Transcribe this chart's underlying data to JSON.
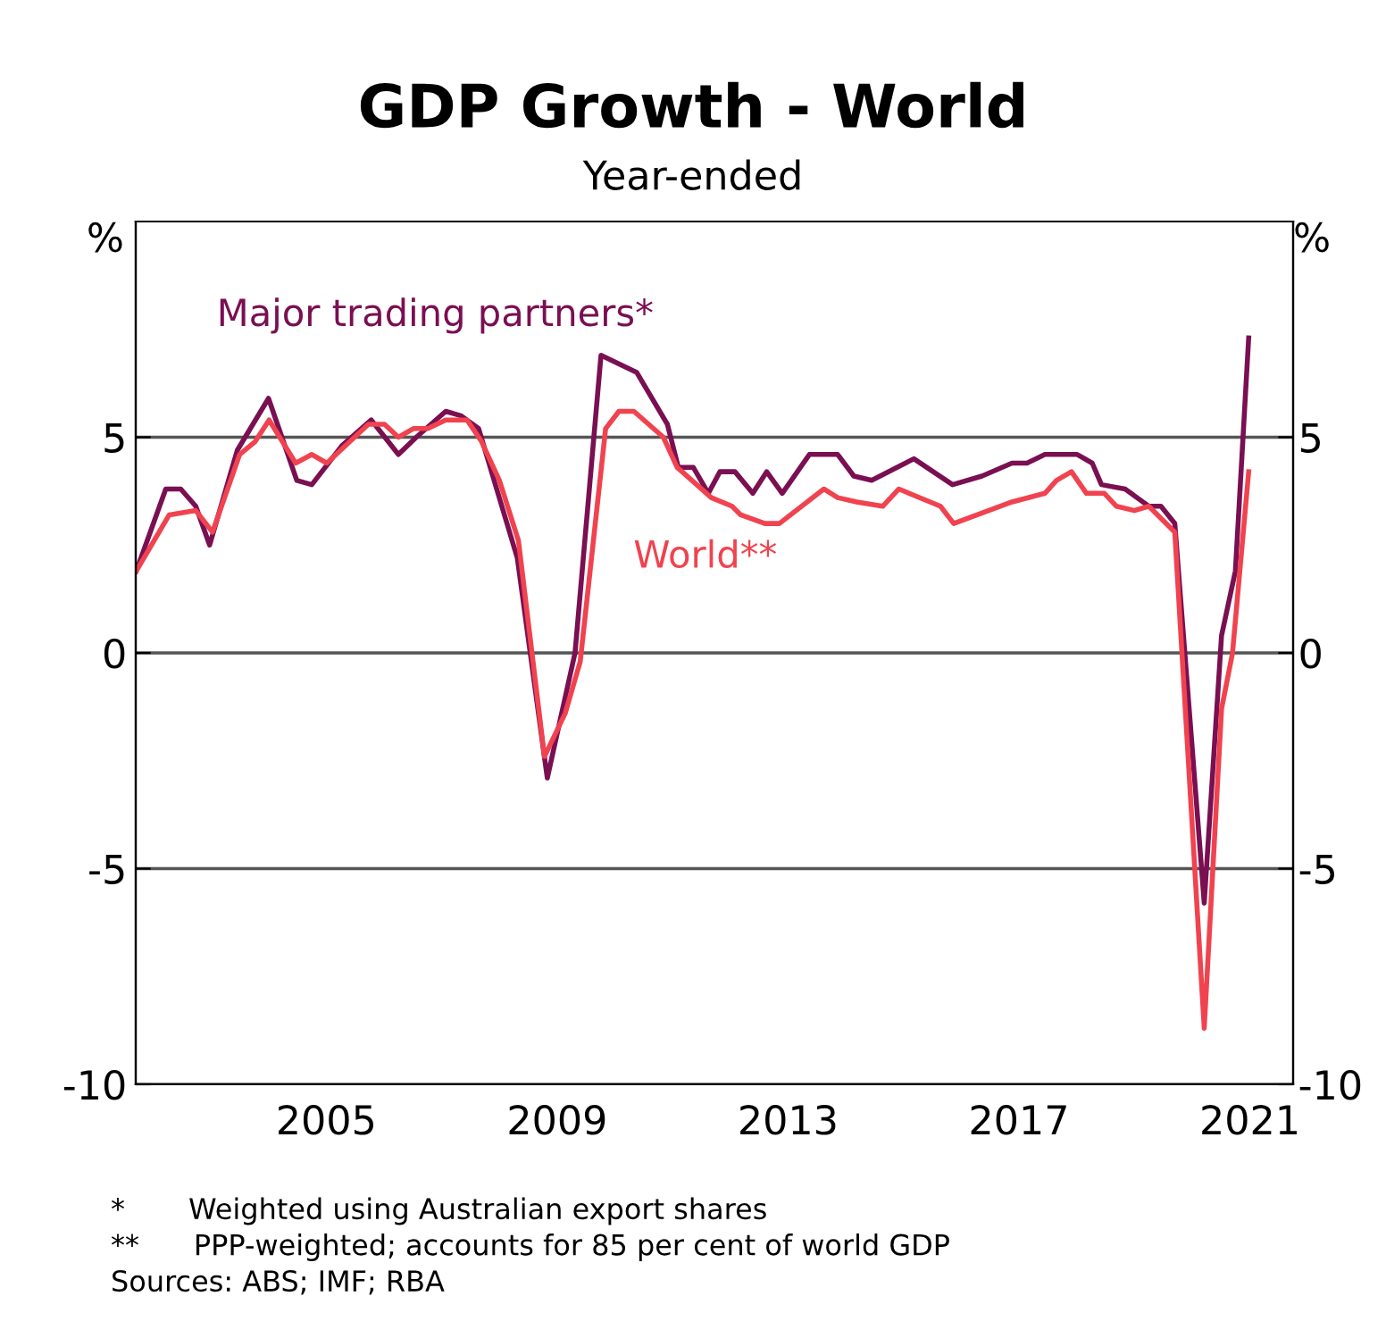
{
  "chart_data": {
    "type": "line",
    "title": "GDP Growth - World",
    "subtitle": "Year-ended",
    "ylabel": "%",
    "y2label": "%",
    "xlim": [
      2002.2,
      2022.25
    ],
    "xticks": [
      {
        "value": 2005.5,
        "label": "2005"
      },
      {
        "value": 2009.5,
        "label": "2009"
      },
      {
        "value": 2013.5,
        "label": "2013"
      },
      {
        "value": 2017.5,
        "label": "2017"
      },
      {
        "value": 2021.5,
        "label": "2021"
      }
    ],
    "ylim": [
      -10,
      10
    ],
    "yticks": [
      -10,
      -5,
      0,
      5
    ],
    "y2lim": [
      -10,
      10
    ],
    "y2ticks": [
      -10,
      -5,
      0,
      5
    ],
    "grid": "y",
    "line_style": "solid",
    "series": [
      {
        "name": "Major trading partners*",
        "color": "#7a0f52",
        "x": [
          2002.21,
          2002.72,
          2002.98,
          2003.24,
          2003.48,
          2003.96,
          2004.5,
          2004.99,
          2005.25,
          2005.77,
          2006.28,
          2006.75,
          2007.06,
          2007.57,
          2007.83,
          2008.14,
          2008.81,
          2009.33,
          2009.81,
          2010.26,
          2010.88,
          2011.41,
          2011.6,
          2011.86,
          2012.12,
          2012.32,
          2012.58,
          2012.89,
          2013.13,
          2013.4,
          2013.87,
          2014.36,
          2014.64,
          2014.95,
          2015.68,
          2016.35,
          2016.86,
          2017.38,
          2017.64,
          2017.95,
          2018.51,
          2018.77,
          2018.93,
          2019.34,
          2019.75,
          2019.96,
          2020.2,
          2020.71,
          2021.01,
          2021.25,
          2021.48
        ],
        "values": [
          1.9,
          3.8,
          3.8,
          3.4,
          2.5,
          4.7,
          5.9,
          4.0,
          3.9,
          4.8,
          5.4,
          4.6,
          5.0,
          5.6,
          5.5,
          5.2,
          2.2,
          -2.9,
          0.0,
          6.9,
          6.5,
          5.3,
          4.3,
          4.3,
          3.7,
          4.2,
          4.2,
          3.7,
          4.2,
          3.7,
          4.6,
          4.6,
          4.1,
          4.0,
          4.5,
          3.9,
          4.1,
          4.4,
          4.4,
          4.6,
          4.6,
          4.4,
          3.9,
          3.8,
          3.4,
          3.4,
          3.0,
          -5.8,
          0.4,
          1.9,
          7.3
        ]
      },
      {
        "name": "World**",
        "color": "#f0434f",
        "x": [
          2002.21,
          2002.78,
          2003.24,
          2003.53,
          2004.0,
          2004.27,
          2004.51,
          2004.97,
          2005.25,
          2005.51,
          2006.23,
          2006.51,
          2006.75,
          2007.01,
          2007.26,
          2007.57,
          2007.94,
          2008.19,
          2008.5,
          2008.83,
          2009.28,
          2009.64,
          2009.9,
          2010.34,
          2010.57,
          2010.83,
          2011.34,
          2011.58,
          2012.17,
          2012.53,
          2012.68,
          2013.1,
          2013.35,
          2014.12,
          2014.36,
          2014.69,
          2015.14,
          2015.42,
          2016.14,
          2016.37,
          2017.38,
          2017.95,
          2018.15,
          2018.41,
          2018.67,
          2018.98,
          2019.19,
          2019.5,
          2019.75,
          2020.2,
          2020.71,
          2021.01,
          2021.2,
          2021.48
        ],
        "values": [
          1.9,
          3.2,
          3.3,
          2.8,
          4.6,
          4.9,
          5.4,
          4.4,
          4.6,
          4.4,
          5.3,
          5.3,
          5.0,
          5.2,
          5.2,
          5.4,
          5.4,
          4.9,
          4.0,
          2.6,
          -2.4,
          -1.4,
          -0.2,
          5.2,
          5.6,
          5.6,
          5.0,
          4.3,
          3.6,
          3.4,
          3.2,
          3.0,
          3.0,
          3.8,
          3.6,
          3.5,
          3.4,
          3.8,
          3.4,
          3.0,
          3.5,
          3.7,
          4.0,
          4.2,
          3.7,
          3.7,
          3.4,
          3.3,
          3.4,
          2.8,
          -8.7,
          -1.3,
          0.0,
          4.2
        ]
      }
    ],
    "annotations": [
      "*       Weighted using Australian export shares",
      "**      PPP-weighted; accounts for 85 per cent of world GDP",
      "Sources: ABS; IMF; RBA"
    ]
  }
}
